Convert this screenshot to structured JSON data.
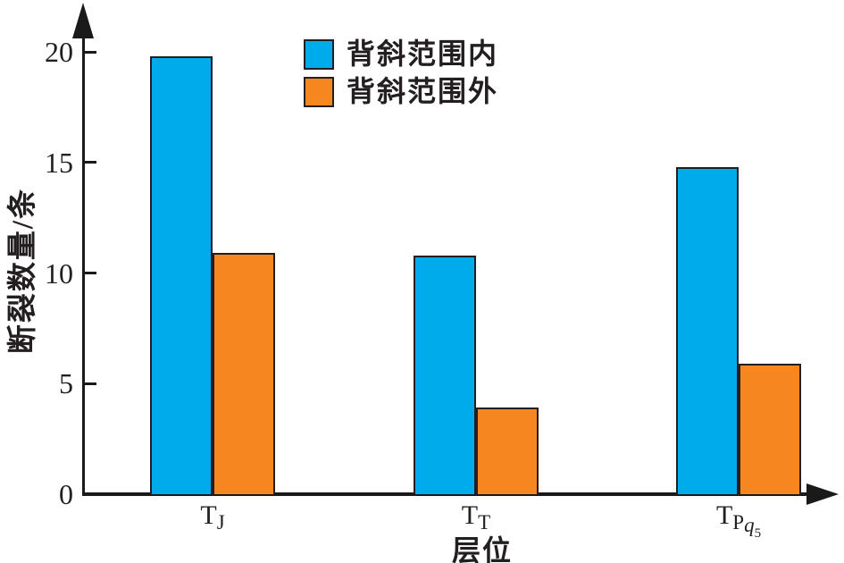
{
  "figure": {
    "background": "#FFFFFF"
  },
  "chart_data": {
    "type": "bar",
    "title": "",
    "xlabel": "层位",
    "ylabel": "断裂数量/条",
    "yticks": [
      0,
      5,
      10,
      15,
      20
    ],
    "ylim": [
      0,
      22
    ],
    "grid": false,
    "legend_position": "top-center-inside",
    "categories": [
      "TJ",
      "TT",
      "TPq5"
    ],
    "categories_rich": [
      {
        "base": "T",
        "sub": "J",
        "sub_italic": "",
        "sub_sub": ""
      },
      {
        "base": "T",
        "sub": "T",
        "sub_italic": "",
        "sub_sub": ""
      },
      {
        "base": "T",
        "sub": "P",
        "sub_italic": "q",
        "sub_sub": "5"
      }
    ],
    "series": [
      {
        "name": "背斜范围内",
        "color": "#00ABEC",
        "values": [
          19.8,
          10.8,
          14.8
        ]
      },
      {
        "name": "背斜范围外",
        "color": "#F6861F",
        "values": [
          10.9,
          3.9,
          5.9
        ]
      }
    ]
  },
  "colors": {
    "series_inside": "#00ABEC",
    "series_outside": "#F6861F",
    "bar_outline": "#231F20",
    "axis": "#1A1A1A",
    "text": "#231F20",
    "background": "#FFFFFF"
  }
}
